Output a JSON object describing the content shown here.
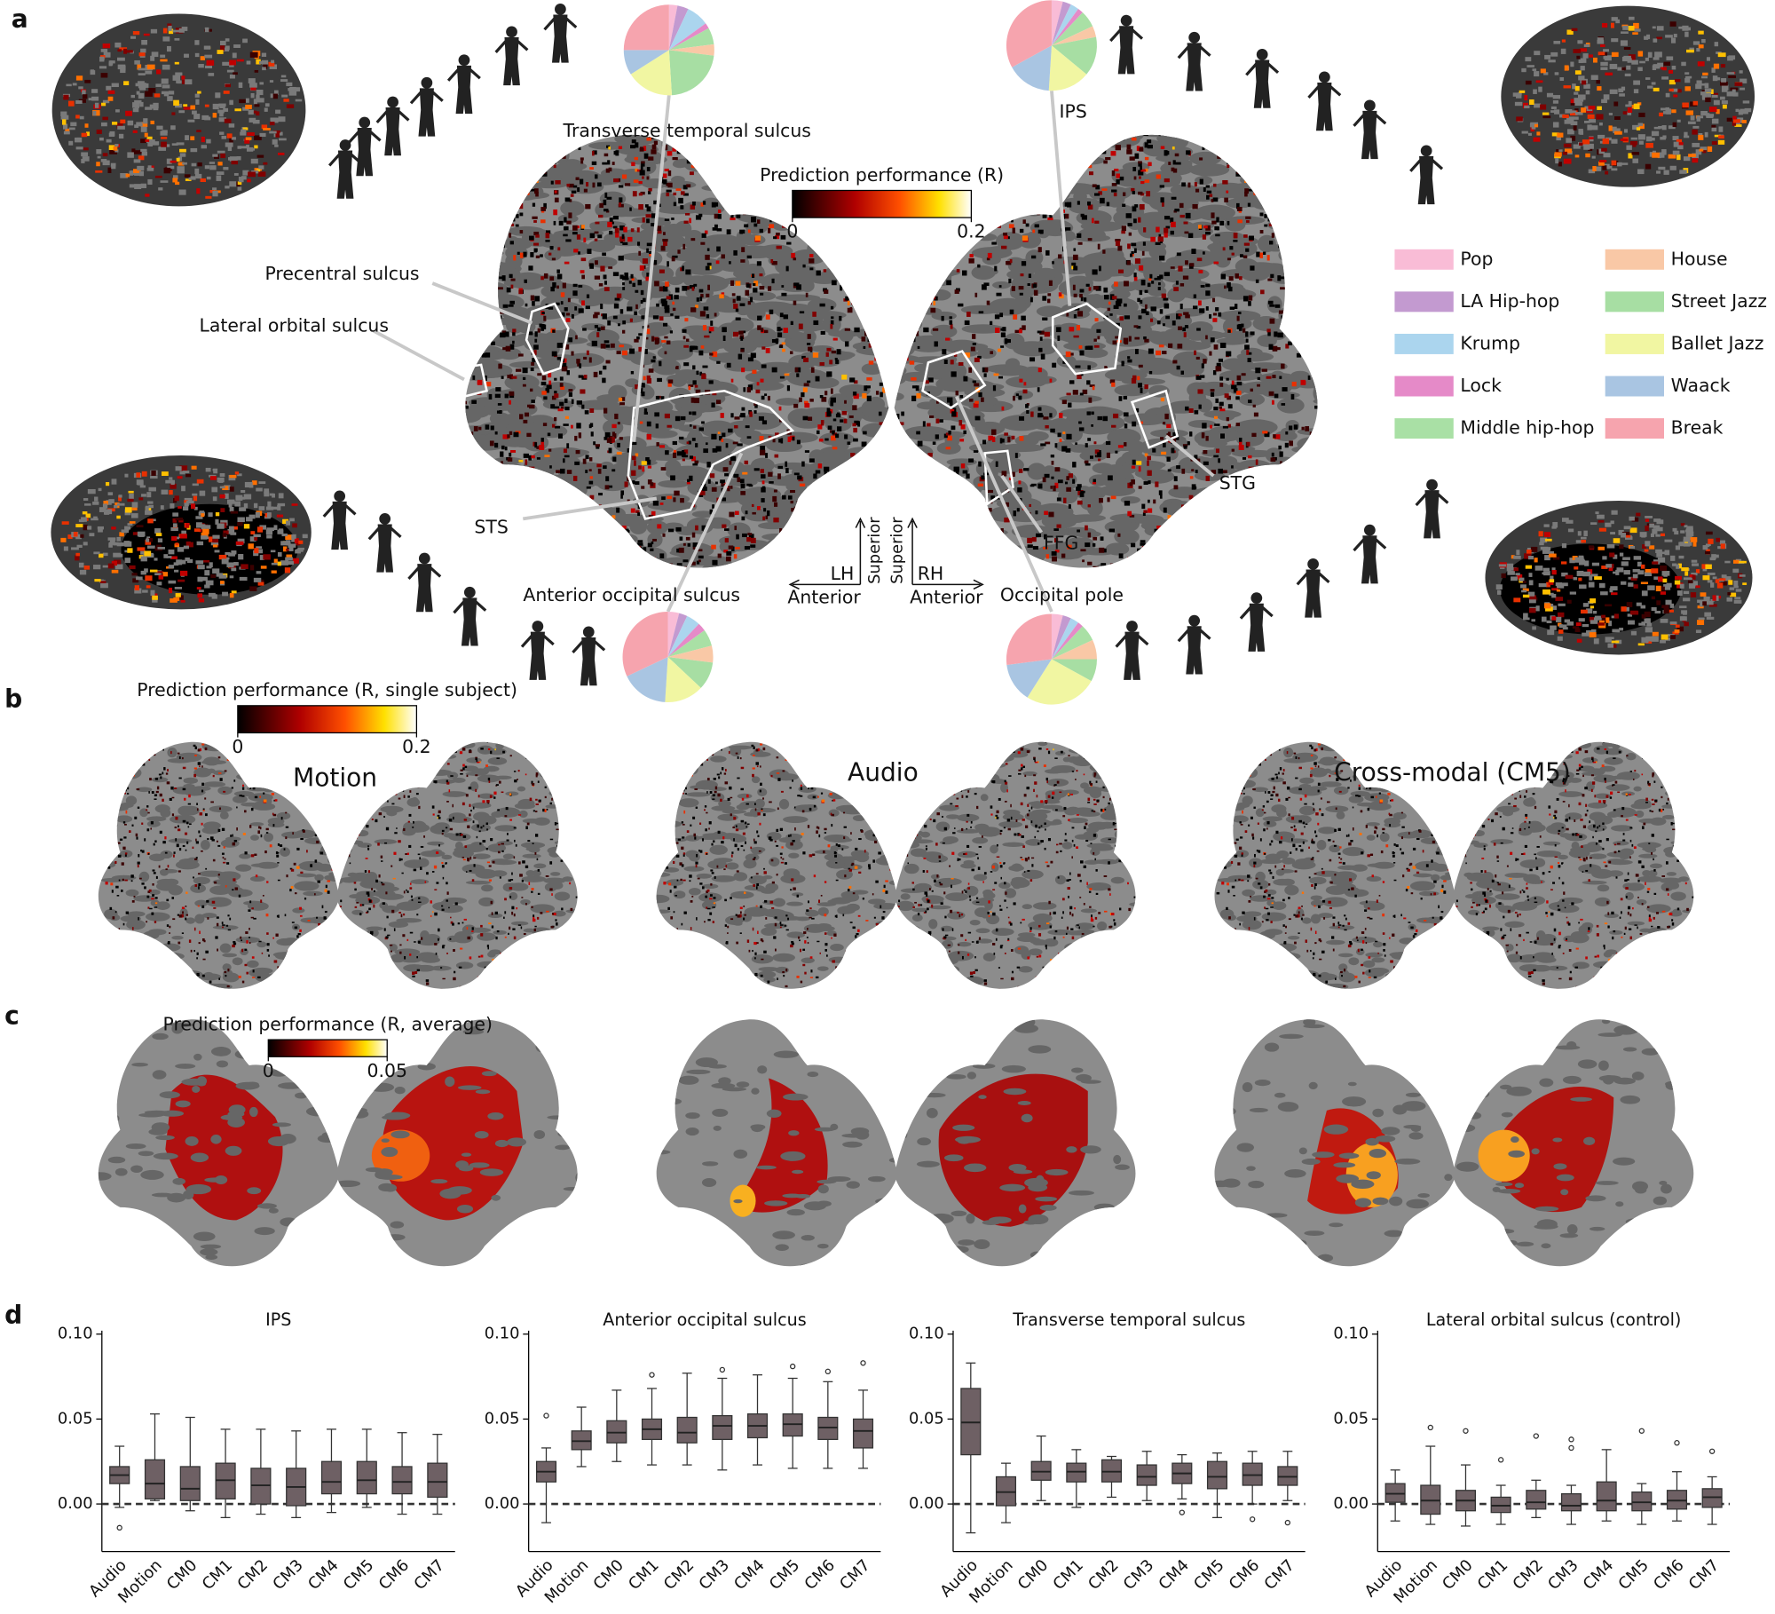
{
  "panel_labels": [
    "a",
    "b",
    "c",
    "d"
  ],
  "panel_a": {
    "colorbar": {
      "label": "Prediction performance (R)",
      "ticks": [
        0,
        0.2
      ]
    },
    "regions": [
      "Precentral sulcus",
      "Lateral orbital sulcus",
      "STS",
      "STG",
      "FFG"
    ],
    "orientation": {
      "lh": "LH",
      "rh": "RH",
      "anterior": "Anterior",
      "superior": "Superior"
    },
    "legend": [
      {
        "name": "Pop",
        "color": "#f9bcd6"
      },
      {
        "name": "LA Hip-hop",
        "color": "#c39ad0"
      },
      {
        "name": "Krump",
        "color": "#abd5ee"
      },
      {
        "name": "Lock",
        "color": "#e58ac8"
      },
      {
        "name": "Middle hip-hop",
        "color": "#a9e0a5"
      },
      {
        "name": "House",
        "color": "#f9c8a6"
      },
      {
        "name": "Street Jazz",
        "color": "#a7dea3"
      },
      {
        "name": "Ballet Jazz",
        "color": "#f1f6a2"
      },
      {
        "name": "Waack",
        "color": "#a9c5e2"
      },
      {
        "name": "Break",
        "color": "#f6a4ae"
      }
    ],
    "pies": [
      {
        "label": "Transverse temporal sulcus",
        "values": [
          3,
          4,
          8,
          2,
          6,
          4,
          22,
          17,
          9,
          25
        ]
      },
      {
        "label": "IPS",
        "values": [
          4,
          3,
          3,
          2,
          6,
          4,
          14,
          15,
          16,
          33
        ]
      },
      {
        "label": "Anterior occipital sulcus",
        "values": [
          4,
          3,
          5,
          3,
          6,
          6,
          10,
          14,
          17,
          32
        ]
      },
      {
        "label": "Occipital pole",
        "values": [
          4,
          3,
          3,
          2,
          6,
          7,
          8,
          26,
          14,
          27
        ]
      }
    ]
  },
  "panel_b": {
    "colorbar": {
      "label": "Prediction performance (R, single subject)",
      "ticks": [
        0,
        0.2
      ]
    },
    "titles": [
      "Motion",
      "Audio",
      "Cross-modal (CM5)"
    ]
  },
  "panel_c": {
    "colorbar": {
      "label": "Prediction performance (R, average)",
      "ticks": [
        0,
        0.05
      ]
    }
  },
  "panel_d": {
    "ylim": [
      -0.028,
      0.102
    ],
    "yticks": [
      {
        "value": 0,
        "label": "0.00"
      },
      {
        "value": 0.05,
        "label": "0.05"
      },
      {
        "value": 0.1,
        "label": "0.10"
      }
    ],
    "reference_line": 0,
    "categories": [
      "Audio",
      "Motion",
      "CM0",
      "CM1",
      "CM2",
      "CM3",
      "CM4",
      "CM5",
      "CM6",
      "CM7"
    ],
    "charts": [
      {
        "title": "IPS",
        "boxes": [
          {
            "median": 0.017,
            "q1": 0.012,
            "q3": 0.022,
            "whisker_low": -0.002,
            "whisker_high": 0.034,
            "outliers": [
              -0.014
            ]
          },
          {
            "median": 0.012,
            "q1": 0.003,
            "q3": 0.026,
            "whisker_low": 0.002,
            "whisker_high": 0.053
          },
          {
            "median": 0.009,
            "q1": 0.002,
            "q3": 0.022,
            "whisker_low": -0.004,
            "whisker_high": 0.051
          },
          {
            "median": 0.014,
            "q1": 0.003,
            "q3": 0.024,
            "whisker_low": -0.008,
            "whisker_high": 0.044
          },
          {
            "median": 0.011,
            "q1": 0.0,
            "q3": 0.021,
            "whisker_low": -0.006,
            "whisker_high": 0.044
          },
          {
            "median": 0.01,
            "q1": -0.001,
            "q3": 0.021,
            "whisker_low": -0.008,
            "whisker_high": 0.043
          },
          {
            "median": 0.013,
            "q1": 0.006,
            "q3": 0.025,
            "whisker_low": -0.005,
            "whisker_high": 0.044
          },
          {
            "median": 0.014,
            "q1": 0.006,
            "q3": 0.025,
            "whisker_low": -0.002,
            "whisker_high": 0.044
          },
          {
            "median": 0.013,
            "q1": 0.006,
            "q3": 0.022,
            "whisker_low": -0.006,
            "whisker_high": 0.042
          },
          {
            "median": 0.013,
            "q1": 0.004,
            "q3": 0.024,
            "whisker_low": -0.006,
            "whisker_high": 0.041
          }
        ]
      },
      {
        "title": "Anterior occipital sulcus",
        "boxes": [
          {
            "median": 0.019,
            "q1": 0.013,
            "q3": 0.025,
            "whisker_low": -0.011,
            "whisker_high": 0.033,
            "outliers": [
              0.052
            ]
          },
          {
            "median": 0.037,
            "q1": 0.032,
            "q3": 0.043,
            "whisker_low": 0.022,
            "whisker_high": 0.057
          },
          {
            "median": 0.042,
            "q1": 0.036,
            "q3": 0.049,
            "whisker_low": 0.025,
            "whisker_high": 0.067
          },
          {
            "median": 0.044,
            "q1": 0.038,
            "q3": 0.05,
            "whisker_low": 0.023,
            "whisker_high": 0.068,
            "outliers": [
              0.076
            ]
          },
          {
            "median": 0.042,
            "q1": 0.036,
            "q3": 0.051,
            "whisker_low": 0.023,
            "whisker_high": 0.077
          },
          {
            "median": 0.046,
            "q1": 0.038,
            "q3": 0.052,
            "whisker_low": 0.02,
            "whisker_high": 0.074,
            "outliers": [
              0.079
            ]
          },
          {
            "median": 0.046,
            "q1": 0.039,
            "q3": 0.053,
            "whisker_low": 0.023,
            "whisker_high": 0.076
          },
          {
            "median": 0.047,
            "q1": 0.04,
            "q3": 0.053,
            "whisker_low": 0.021,
            "whisker_high": 0.074,
            "outliers": [
              0.081
            ]
          },
          {
            "median": 0.045,
            "q1": 0.038,
            "q3": 0.051,
            "whisker_low": 0.021,
            "whisker_high": 0.072,
            "outliers": [
              0.078
            ]
          },
          {
            "median": 0.043,
            "q1": 0.033,
            "q3": 0.05,
            "whisker_low": 0.021,
            "whisker_high": 0.067,
            "outliers": [
              0.083
            ]
          }
        ]
      },
      {
        "title": "Transverse temporal sulcus",
        "boxes": [
          {
            "median": 0.048,
            "q1": 0.029,
            "q3": 0.068,
            "whisker_low": -0.017,
            "whisker_high": 0.083
          },
          {
            "median": 0.007,
            "q1": -0.001,
            "q3": 0.016,
            "whisker_low": -0.011,
            "whisker_high": 0.024
          },
          {
            "median": 0.019,
            "q1": 0.014,
            "q3": 0.025,
            "whisker_low": 0.002,
            "whisker_high": 0.04
          },
          {
            "median": 0.019,
            "q1": 0.013,
            "q3": 0.024,
            "whisker_low": -0.002,
            "whisker_high": 0.032
          },
          {
            "median": 0.019,
            "q1": 0.013,
            "q3": 0.026,
            "whisker_low": 0.004,
            "whisker_high": 0.028
          },
          {
            "median": 0.016,
            "q1": 0.011,
            "q3": 0.023,
            "whisker_low": 0.002,
            "whisker_high": 0.031
          },
          {
            "median": 0.018,
            "q1": 0.012,
            "q3": 0.024,
            "whisker_low": 0.003,
            "whisker_high": 0.029,
            "outliers": [
              -0.005
            ]
          },
          {
            "median": 0.016,
            "q1": 0.009,
            "q3": 0.025,
            "whisker_low": -0.008,
            "whisker_high": 0.03
          },
          {
            "median": 0.017,
            "q1": 0.011,
            "q3": 0.024,
            "whisker_low": 0.0,
            "whisker_high": 0.031,
            "outliers": [
              -0.009
            ]
          },
          {
            "median": 0.016,
            "q1": 0.011,
            "q3": 0.022,
            "whisker_low": 0.002,
            "whisker_high": 0.031,
            "outliers": [
              -0.011
            ]
          }
        ]
      },
      {
        "title": "Lateral orbital sulcus (control)",
        "boxes": [
          {
            "median": 0.006,
            "q1": 0.001,
            "q3": 0.012,
            "whisker_low": -0.01,
            "whisker_high": 0.02
          },
          {
            "median": 0.002,
            "q1": -0.006,
            "q3": 0.011,
            "whisker_low": -0.012,
            "whisker_high": 0.034,
            "outliers": [
              0.045
            ]
          },
          {
            "median": 0.002,
            "q1": -0.004,
            "q3": 0.008,
            "whisker_low": -0.013,
            "whisker_high": 0.023,
            "outliers": [
              0.043
            ]
          },
          {
            "median": -0.001,
            "q1": -0.005,
            "q3": 0.004,
            "whisker_low": -0.012,
            "whisker_high": 0.011,
            "outliers": [
              0.026
            ]
          },
          {
            "median": 0.001,
            "q1": -0.003,
            "q3": 0.008,
            "whisker_low": -0.008,
            "whisker_high": 0.014,
            "outliers": [
              0.04
            ]
          },
          {
            "median": -0.001,
            "q1": -0.004,
            "q3": 0.006,
            "whisker_low": -0.012,
            "whisker_high": 0.011,
            "outliers": [
              0.033,
              0.038
            ]
          },
          {
            "median": 0.002,
            "q1": -0.004,
            "q3": 0.013,
            "whisker_low": -0.01,
            "whisker_high": 0.032
          },
          {
            "median": 0.001,
            "q1": -0.004,
            "q3": 0.007,
            "whisker_low": -0.012,
            "whisker_high": 0.012,
            "outliers": [
              0.043
            ]
          },
          {
            "median": 0.002,
            "q1": -0.003,
            "q3": 0.008,
            "whisker_low": -0.01,
            "whisker_high": 0.019,
            "outliers": [
              0.036
            ]
          },
          {
            "median": 0.004,
            "q1": -0.002,
            "q3": 0.009,
            "whisker_low": -0.012,
            "whisker_high": 0.016,
            "outliers": [
              0.031
            ]
          }
        ]
      }
    ]
  }
}
